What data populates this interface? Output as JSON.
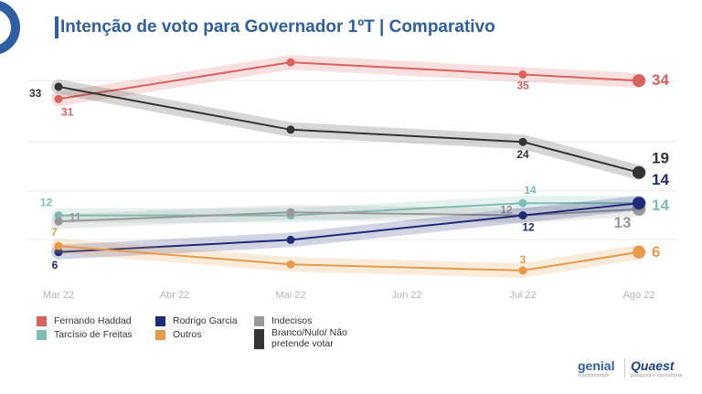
{
  "title": "Intenção de voto para Governador 1ºT | Comparativo",
  "chart_data": {
    "type": "line",
    "x": [
      "Mar 22",
      "Abr 22",
      "Mai 22",
      "Jun 22",
      "Jul 22",
      "Ago 22"
    ],
    "ylim": [
      0,
      40
    ],
    "series": [
      {
        "name": "Fernando Haddad",
        "color": "#d9625f",
        "values": [
          31,
          null,
          37,
          null,
          35,
          34
        ],
        "labels": [
          "31",
          "",
          "",
          "",
          "35",
          "34"
        ]
      },
      {
        "name": "Branco/Nulo/ Não pretende votar",
        "color": "#333333",
        "values": [
          33,
          null,
          26,
          null,
          24,
          19
        ],
        "labels": [
          "33",
          "",
          "",
          "",
          "24",
          "19"
        ]
      },
      {
        "name": "Tarcísio de Freitas",
        "color": "#7fbcb4",
        "values": [
          12,
          null,
          12,
          null,
          14,
          14
        ],
        "labels": [
          "12",
          "",
          "",
          "",
          "14",
          "14"
        ]
      },
      {
        "name": "Indecisos",
        "color": "#999999",
        "values": [
          11,
          null,
          12.5,
          null,
          12,
          13
        ],
        "labels": [
          "11",
          "",
          "",
          "",
          "12",
          "13"
        ]
      },
      {
        "name": "Rodrigo Garcia",
        "color": "#1f2a78",
        "values": [
          6,
          null,
          8,
          null,
          12,
          14
        ],
        "labels": [
          "6",
          "",
          "",
          "",
          "12",
          "14"
        ]
      },
      {
        "name": "Outros",
        "color": "#e69a4a",
        "values": [
          7,
          null,
          4,
          null,
          3,
          6
        ],
        "labels": [
          "7",
          "",
          "",
          "",
          "3",
          "6"
        ]
      }
    ]
  },
  "legend": [
    {
      "name": "Fernando Haddad",
      "color": "#d9625f"
    },
    {
      "name": "Tarcísio de Freitas",
      "color": "#7fbcb4"
    },
    {
      "name": "Rodrigo Garcia",
      "color": "#1f2a78"
    },
    {
      "name": "Outros",
      "color": "#e69a4a"
    },
    {
      "name": "Indecisos",
      "color": "#999999"
    },
    {
      "name": "Branco/Nulo/ Não pretende votar",
      "color": "#333333"
    }
  ],
  "branding": {
    "genial": "genial",
    "genial_sub": "investimentos",
    "quaest": "Quaest",
    "quaest_sub": "pesquisa e consultoria"
  }
}
